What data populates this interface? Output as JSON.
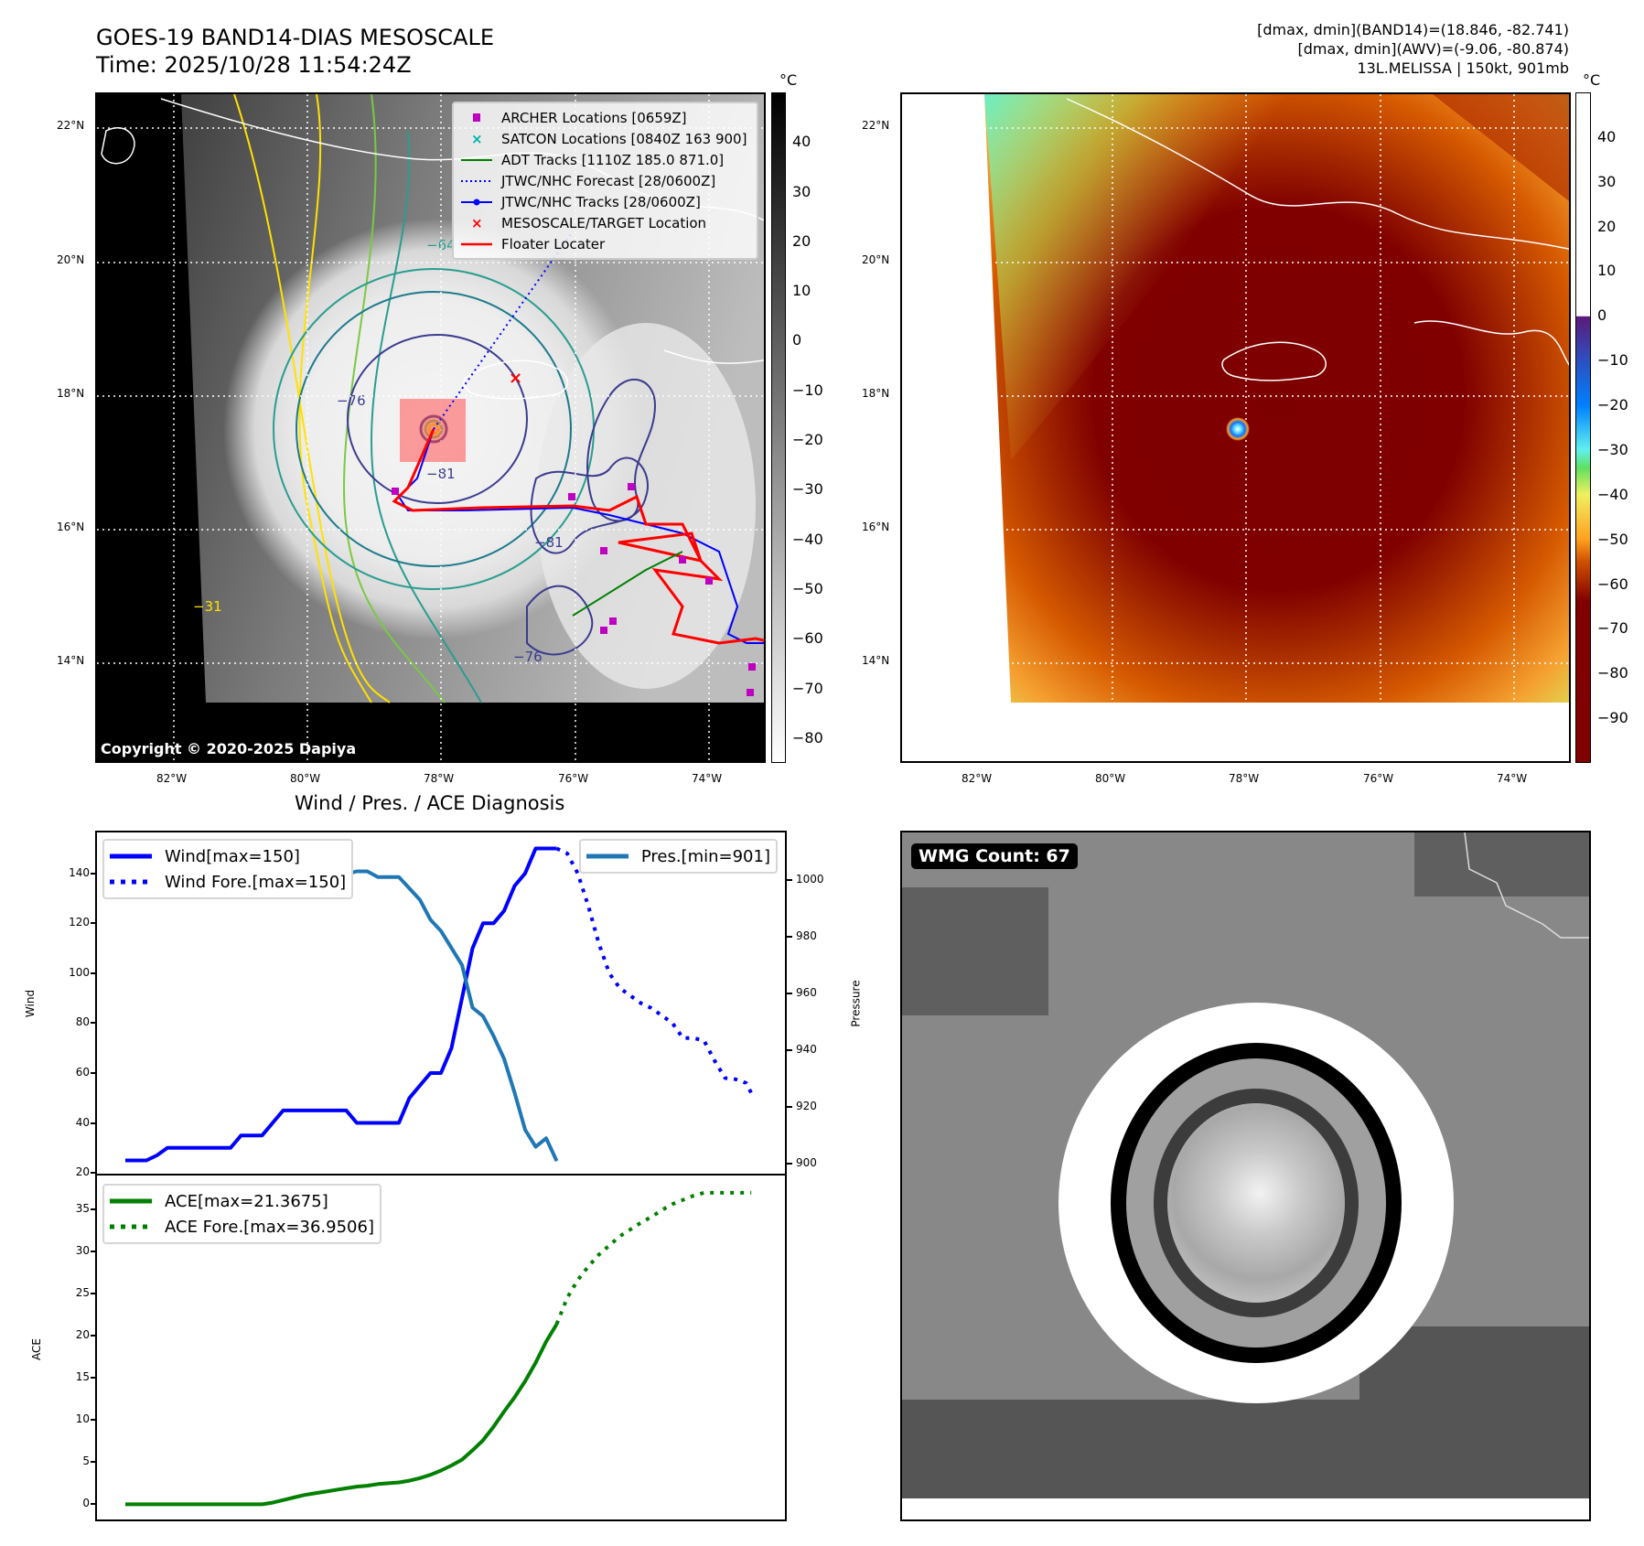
{
  "header": {
    "title": "GOES-19 BAND14-DIAS MESOSCALE",
    "time": "Time: 2025/10/28 11:54:24Z",
    "stats": [
      "[dmax, dmin](BAND14)=(18.846, -82.741)",
      "[dmax, dmin](AWV)=(-9.06, -80.874)",
      "13L.MELISSA | 150kt, 901mb"
    ]
  },
  "map_ir": {
    "lat_labels": [
      "22°N",
      "20°N",
      "18°N",
      "16°N",
      "14°N"
    ],
    "lon_labels": [
      "82°W",
      "80°W",
      "78°W",
      "76°W",
      "74°W"
    ],
    "colorbar": {
      "unit": "°C",
      "range": [
        -85,
        50
      ],
      "ticks": [
        40,
        30,
        20,
        10,
        0,
        -10,
        -20,
        -30,
        -40,
        -50,
        -60,
        -70,
        -80
      ],
      "tick_labels": [
        "40",
        "30",
        "20",
        "10",
        "0",
        "−10",
        "−20",
        "−30",
        "−40",
        "−50",
        "−60",
        "−70",
        "−80"
      ]
    },
    "legend": [
      {
        "label": "ARCHER Locations [0659Z]",
        "icon": "magenta-square",
        "color": "#c000c0"
      },
      {
        "label": "SATCON Locations [0840Z 163 900]",
        "icon": "cyan-x",
        "color": "#00b0b0"
      },
      {
        "label": "ADT Tracks [1110Z 185.0 871.0]",
        "icon": "green-line",
        "color": "#008000"
      },
      {
        "label": "JTWC/NHC Forecast [28/0600Z]",
        "icon": "blue-dotted-line",
        "color": "#0000ff"
      },
      {
        "label": "JTWC/NHC Tracks [28/0600Z]",
        "icon": "blue-line-dot",
        "color": "#0000ff"
      },
      {
        "label": "MESOSCALE/TARGET Location",
        "icon": "red-x",
        "color": "#ff0000"
      },
      {
        "label": "Floater Locater",
        "icon": "red-line",
        "color": "#ff0000"
      }
    ],
    "contour_labels": [
      "−76",
      "−81",
      "−64",
      "−31",
      "−76",
      "−81"
    ],
    "copyright": "Copyright © 2020-2025 Dapiya"
  },
  "map_awv": {
    "lat_labels": [
      "22°N",
      "20°N",
      "18°N",
      "16°N",
      "14°N"
    ],
    "lon_labels": [
      "82°W",
      "80°W",
      "78°W",
      "76°W",
      "74°W"
    ],
    "colorbar": {
      "unit": "°C",
      "range": [
        -100,
        50
      ],
      "ticks": [
        40,
        30,
        20,
        10,
        0,
        -10,
        -20,
        -30,
        -40,
        -50,
        -60,
        -70,
        -80,
        -90
      ],
      "tick_labels": [
        "40",
        "30",
        "20",
        "10",
        "0",
        "−10",
        "−20",
        "−30",
        "−40",
        "−50",
        "−60",
        "−70",
        "−80",
        "−90"
      ]
    }
  },
  "wmg": {
    "count_label": "WMG Count: 67"
  },
  "chart_data": [
    {
      "type": "line",
      "title": "Wind / Pres. / ACE Diagnosis",
      "ylabel": "Wind",
      "y2label": "Pressure",
      "ylim": [
        19.3,
        156.4
      ],
      "y2lim": [
        896.2,
        1016.7
      ],
      "xlim": [
        -2.7,
        62.7
      ],
      "yticks": [
        20,
        40,
        60,
        80,
        100,
        120,
        140
      ],
      "y2ticks": [
        900,
        920,
        940,
        960,
        980,
        1000
      ],
      "grid": false,
      "series": [
        {
          "name": "Wind[max=150]",
          "style": "solid",
          "color": "#0000ff",
          "axis": "left",
          "x": [
            0,
            1,
            2,
            3,
            4,
            5,
            6,
            7,
            8,
            9,
            10,
            11,
            12,
            13,
            14,
            15,
            16,
            17,
            18,
            19,
            20,
            21,
            22,
            23,
            24,
            25,
            26,
            27,
            28,
            29,
            30,
            31,
            32,
            33,
            34,
            35,
            36,
            37,
            38,
            39,
            40,
            41
          ],
          "values": [
            25,
            25,
            25,
            27,
            30,
            30,
            30,
            30,
            30,
            30,
            30,
            35,
            35,
            35,
            40,
            45,
            45,
            45,
            45,
            45,
            45,
            45,
            40,
            40,
            40,
            40,
            40,
            50,
            55,
            60,
            60,
            70,
            90,
            110,
            120,
            120,
            125,
            135,
            140,
            150,
            150,
            150
          ]
        },
        {
          "name": "Wind Fore.[max=150]",
          "style": "dotted",
          "color": "#0000ff",
          "axis": "left",
          "x": [
            41,
            42,
            43,
            44,
            45,
            46,
            47,
            48,
            49,
            50,
            51,
            52,
            53,
            54,
            55,
            56,
            57,
            58,
            59,
            59.5
          ],
          "values": [
            150,
            148,
            140,
            127,
            112,
            100,
            94,
            91,
            88,
            86,
            83,
            80,
            74,
            74,
            73,
            65,
            58,
            57.5,
            56,
            52
          ]
        },
        {
          "name": "Pres.[min=901]",
          "style": "solid",
          "color": "#1f77b4",
          "axis": "right",
          "x": [
            0,
            1,
            2,
            3,
            4,
            5,
            6,
            7,
            8,
            9,
            10,
            11,
            12,
            13,
            14,
            15,
            16,
            17,
            18,
            19,
            20,
            21,
            22,
            23,
            24,
            25,
            26,
            27,
            28,
            29,
            30,
            31,
            32,
            33,
            34,
            35,
            36,
            37,
            38,
            39,
            40,
            41
          ],
          "values": [
            1011,
            1011,
            1011,
            1011,
            1010,
            1010,
            1010,
            1009,
            1009,
            1009,
            1009,
            1009,
            1008,
            1006,
            1004.5,
            1003.4,
            1003.4,
            1002,
            1001,
            1001,
            1001,
            1002,
            1003,
            1003,
            1001,
            1001,
            1001,
            997,
            993,
            986,
            982,
            976,
            970,
            955,
            952,
            945,
            937,
            925,
            912,
            906,
            909,
            901
          ]
        }
      ],
      "legend_left": "top-left",
      "legend_right": "top-right"
    },
    {
      "type": "line",
      "ylabel": "ACE",
      "ylim": [
        -1.8,
        39
      ],
      "xlim": [
        -2.7,
        62.7
      ],
      "yticks": [
        0,
        5,
        10,
        15,
        20,
        25,
        30,
        35
      ],
      "grid": false,
      "series": [
        {
          "name": "ACE[max=21.3675]",
          "style": "solid",
          "color": "#008000",
          "x": [
            0,
            1,
            2,
            3,
            4,
            5,
            6,
            7,
            8,
            9,
            10,
            11,
            12,
            13,
            14,
            15,
            16,
            17,
            18,
            19,
            20,
            21,
            22,
            23,
            24,
            25,
            26,
            27,
            28,
            29,
            30,
            31,
            32,
            33,
            34,
            35,
            36,
            37,
            38,
            39,
            40,
            41
          ],
          "values": [
            0,
            0,
            0,
            0,
            0,
            0,
            0,
            0,
            0,
            0,
            0,
            0,
            0,
            0,
            0.2,
            0.5,
            0.8,
            1.1,
            1.3,
            1.5,
            1.7,
            1.9,
            2.1,
            2.2,
            2.4,
            2.5,
            2.6,
            2.8,
            3.1,
            3.5,
            4.0,
            4.6,
            5.3,
            6.4,
            7.6,
            9.2,
            11.0,
            12.7,
            14.6,
            16.8,
            19.3,
            21.37
          ]
        },
        {
          "name": "ACE Fore.[max=36.9506]",
          "style": "dotted",
          "color": "#008000",
          "x": [
            41,
            42,
            43,
            44,
            45,
            46,
            47,
            48,
            49,
            50,
            51,
            52,
            53,
            54,
            55,
            56,
            57,
            58,
            59,
            59.5
          ],
          "values": [
            21.37,
            24.5,
            26.6,
            28.2,
            29.6,
            30.7,
            31.8,
            32.6,
            33.4,
            34.1,
            34.9,
            35.6,
            36.1,
            36.6,
            36.95,
            36.95,
            36.95,
            36.95,
            36.95,
            36.95
          ]
        }
      ],
      "legend": "top-left"
    }
  ]
}
